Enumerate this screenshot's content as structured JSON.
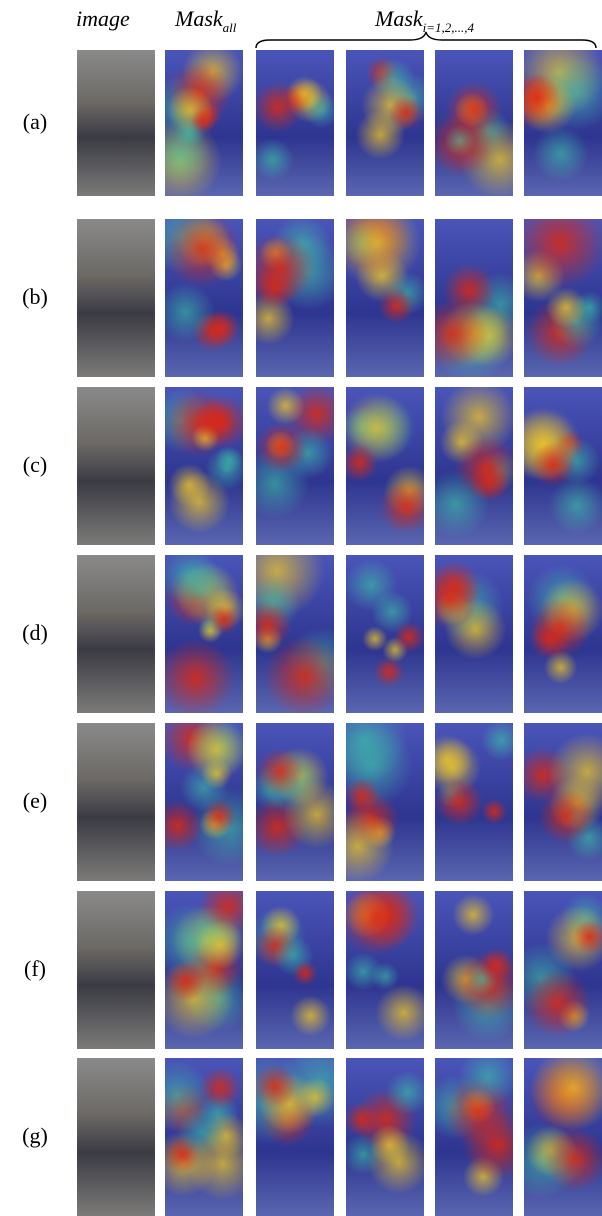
{
  "header": {
    "image": "image",
    "mask_all": {
      "main": "Mask",
      "sub": "all"
    },
    "mask_i": {
      "main": "Mask",
      "sub": "i=1,2,...,4"
    }
  },
  "rows": [
    {
      "label": "(a)"
    },
    {
      "label": "(b)"
    },
    {
      "label": "(c)"
    },
    {
      "label": "(d)"
    },
    {
      "label": "(e)"
    },
    {
      "label": "(f)"
    },
    {
      "label": "(g)"
    }
  ]
}
